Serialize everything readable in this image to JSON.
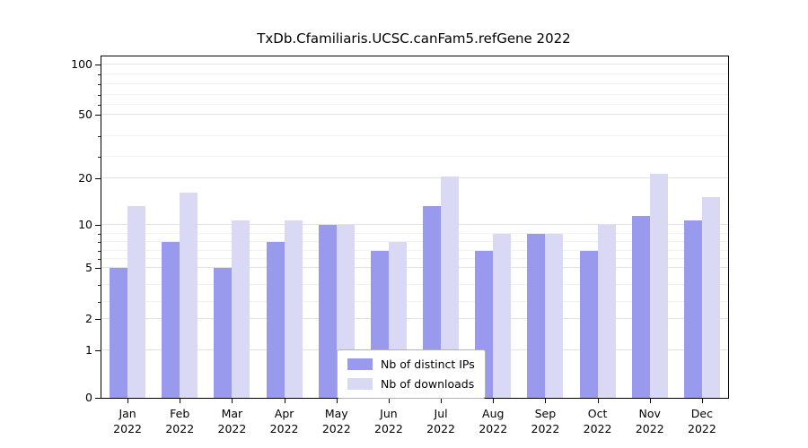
{
  "chart_data": {
    "type": "bar",
    "title": "TxDb.Cfamiliaris.UCSC.canFam5.refGene 2022",
    "categories": [
      "Jan",
      "Feb",
      "Mar",
      "Apr",
      "May",
      "Jun",
      "Jul",
      "Aug",
      "Sep",
      "Oct",
      "Nov",
      "Dec"
    ],
    "year_label": "2022",
    "series": [
      {
        "name": "Nb of distinct IPs",
        "color": "#9999ee",
        "values": [
          5,
          8,
          5,
          8,
          10,
          7,
          14,
          7,
          9,
          7,
          12,
          11
        ]
      },
      {
        "name": "Nb of downloads",
        "color": "#d9d9f6",
        "values": [
          14,
          17,
          11,
          11,
          10,
          8,
          21,
          9,
          9,
          10,
          22,
          16
        ]
      }
    ],
    "y_ticks": [
      0,
      1,
      2,
      5,
      10,
      20,
      50,
      100
    ],
    "minor_gridlines": [
      3,
      4,
      6,
      7,
      8,
      9,
      30,
      40,
      60,
      70,
      80,
      90
    ],
    "y_scale": "log-like",
    "ylim": [
      0,
      110
    ],
    "grid": true,
    "legend_position": "bottom-center-inside",
    "xlabel": "",
    "ylabel": ""
  },
  "colors": {
    "axis": "#000000",
    "grid_major": "#e3e3e3",
    "grid_minor": "#f1f1f1",
    "background": "#ffffff"
  }
}
